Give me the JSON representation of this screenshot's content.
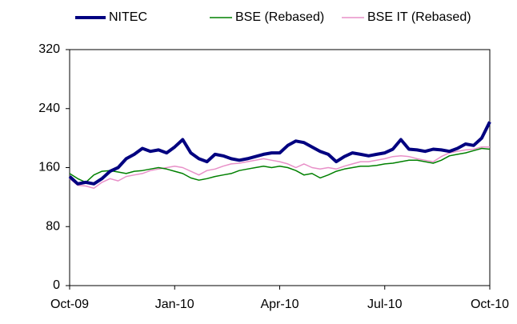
{
  "chart_data": {
    "type": "line",
    "categories": [
      "Oct-09",
      null,
      null,
      null,
      null,
      null,
      null,
      null,
      null,
      null,
      null,
      null,
      null,
      "Jan-10",
      null,
      null,
      null,
      null,
      null,
      null,
      null,
      null,
      null,
      null,
      null,
      null,
      "Apr-10",
      null,
      null,
      null,
      null,
      null,
      null,
      null,
      null,
      null,
      null,
      null,
      null,
      "Jul-10",
      null,
      null,
      null,
      null,
      null,
      null,
      null,
      null,
      null,
      null,
      null,
      null,
      "Oct-10"
    ],
    "series": [
      {
        "name": "NITEC",
        "color": "#000080",
        "values": [
          148,
          138,
          140,
          138,
          145,
          155,
          160,
          172,
          178,
          186,
          182,
          184,
          180,
          188,
          198,
          180,
          172,
          168,
          178,
          176,
          172,
          170,
          172,
          175,
          178,
          180,
          180,
          190,
          196,
          194,
          188,
          182,
          178,
          168,
          175,
          180,
          178,
          176,
          178,
          180,
          185,
          198,
          185,
          184,
          182,
          185,
          184,
          182,
          186,
          192,
          190,
          200,
          222
        ]
      },
      {
        "name": "BSE (Rebased)",
        "color": "#008000",
        "values": [
          152,
          145,
          140,
          150,
          155,
          156,
          154,
          152,
          155,
          156,
          158,
          160,
          158,
          155,
          152,
          146,
          143,
          145,
          148,
          150,
          152,
          156,
          158,
          160,
          162,
          160,
          162,
          160,
          156,
          150,
          152,
          146,
          150,
          155,
          158,
          160,
          162,
          162,
          163,
          165,
          166,
          168,
          170,
          170,
          168,
          166,
          170,
          176,
          178,
          180,
          183,
          186,
          185
        ]
      },
      {
        "name": "BSE IT (Rebased)",
        "color": "#e890c8",
        "values": [
          145,
          136,
          135,
          132,
          140,
          145,
          142,
          148,
          150,
          152,
          156,
          158,
          160,
          162,
          160,
          155,
          150,
          156,
          158,
          162,
          165,
          166,
          168,
          170,
          172,
          170,
          168,
          165,
          160,
          165,
          160,
          158,
          160,
          158,
          162,
          165,
          168,
          168,
          170,
          172,
          175,
          176,
          175,
          172,
          170,
          168,
          175,
          180,
          182,
          184,
          185,
          188,
          188
        ]
      }
    ],
    "ylim": [
      0,
      320
    ],
    "yticks": [
      0,
      80,
      160,
      240,
      320
    ],
    "legend": "top"
  }
}
